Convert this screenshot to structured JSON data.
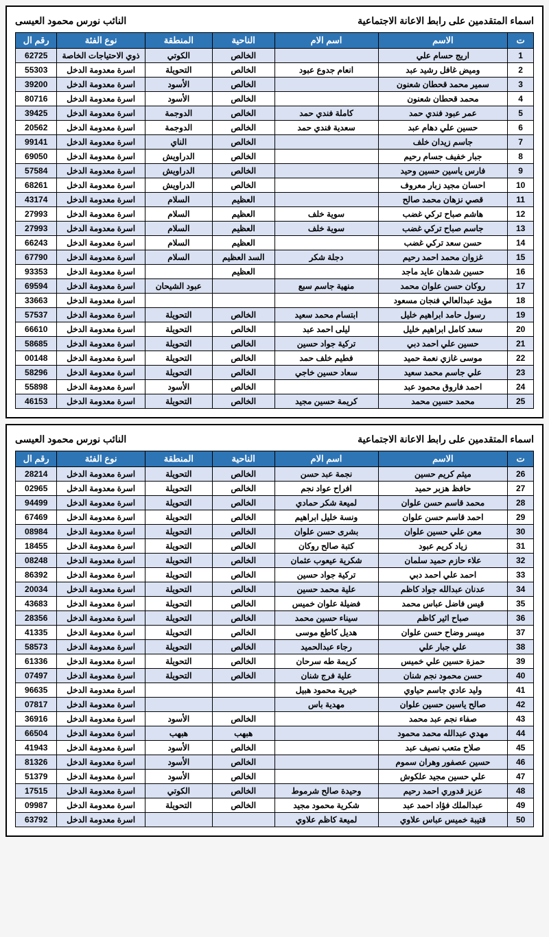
{
  "title_right": "اسماء المتقدمين على رابط الاعانة الاجتماعية",
  "title_left": "النائب نورس محمود العيسى",
  "headers": [
    "ت",
    "الاسم",
    "اسم الام",
    "الناحية",
    "المنطقة",
    "نوع الفئة",
    "رقم ال"
  ],
  "tables": [
    {
      "rows": [
        [
          "1",
          "اريج حسام علي",
          "",
          "الخالص",
          "الكوتي",
          "ذوي الاحتياجات الخاصة",
          "62725"
        ],
        [
          "2",
          "وميض غافل رشيد عبد",
          "انعام جدوع عبود",
          "الخالص",
          "التحويلة",
          "اسرة معدومة الدخل",
          "55303"
        ],
        [
          "3",
          "سمير محمد قحطان شعنون",
          "",
          "الخالص",
          "الأسود",
          "اسرة معدومة الدخل",
          "39200"
        ],
        [
          "4",
          "محمد قحطان شعنون",
          "",
          "الخالص",
          "الأسود",
          "اسرة معدومة الدخل",
          "80716"
        ],
        [
          "5",
          "عمر عبود فندي حمد",
          "كاملة فندي حمد",
          "الخالص",
          "الدوجمة",
          "اسرة معدومة الدخل",
          "39425"
        ],
        [
          "6",
          "حسين علي دهام عبد",
          "سعدية فندي حمد",
          "الخالص",
          "الدوجمة",
          "اسرة معدومة الدخل",
          "20562"
        ],
        [
          "7",
          "جاسم زيدان خلف",
          "",
          "الخالص",
          "الناي",
          "اسرة معدومة الدخل",
          "99141"
        ],
        [
          "8",
          "جبار خفيف جسام رحيم",
          "",
          "الخالص",
          "الدراويش",
          "اسرة معدومة الدخل",
          "69050"
        ],
        [
          "9",
          "فارس ياسين حسين وحيد",
          "",
          "الخالص",
          "الدراويش",
          "اسرة معدومة الدخل",
          "57584"
        ],
        [
          "10",
          "احسان مجيد زبار معروف",
          "",
          "الخالص",
          "الدراويش",
          "اسرة معدومة الدخل",
          "68261"
        ],
        [
          "11",
          "قصي نزهان محمد صالح",
          "",
          "العظيم",
          "السلام",
          "اسرة معدومة الدخل",
          "43174"
        ],
        [
          "12",
          "هاشم صباح تركي غضب",
          "سوية خلف",
          "العظيم",
          "السلام",
          "اسرة معدومة الدخل",
          "27993"
        ],
        [
          "13",
          "جاسم صباح تركي غضب",
          "سوية خلف",
          "العظيم",
          "السلام",
          "اسرة معدومة الدخل",
          "27993"
        ],
        [
          "14",
          "حسن سعد تركي غضب",
          "",
          "العظيم",
          "السلام",
          "اسرة معدومة الدخل",
          "66243"
        ],
        [
          "15",
          "غزوان محمد احمد رحيم",
          "دجلة شكر",
          "السد العظيم",
          "السلام",
          "اسرة معدومة الدخل",
          "67790"
        ],
        [
          "16",
          "حسين شدهان عايد ماجد",
          "",
          "العظيم",
          "",
          "اسرة معدومة الدخل",
          "93353"
        ],
        [
          "17",
          "روكان حسن علوان محمد",
          "منهية جاسم سبع",
          "",
          "عبود الشيحان",
          "اسرة معدومة الدخل",
          "69594"
        ],
        [
          "18",
          "مؤيد عبدالعالي فنجان مسعود",
          "",
          "",
          "",
          "اسرة معدومة الدخل",
          "33663"
        ],
        [
          "19",
          "رسول حامد ابراهيم خليل",
          "ابتسام محمد سعيد",
          "الخالص",
          "التحويلة",
          "اسرة معدومة الدخل",
          "57537"
        ],
        [
          "20",
          "سعد كامل ابراهيم خليل",
          "ليلى احمد عبد",
          "الخالص",
          "التحويلة",
          "اسرة معدومة الدخل",
          "66610"
        ],
        [
          "21",
          "حسين علي احمد دبي",
          "تركية جواد حسين",
          "الخالص",
          "التحويلة",
          "اسرة معدومة الدخل",
          "58685"
        ],
        [
          "22",
          "موسى غازي نعمة حميد",
          "فطيم خلف حمد",
          "الخالص",
          "التحويلة",
          "اسرة معدومة الدخل",
          "00148"
        ],
        [
          "23",
          "علي جاسم محمد سعيد",
          "سعاد حسين خاجي",
          "الخالص",
          "التحويلة",
          "اسرة معدومة الدخل",
          "58296"
        ],
        [
          "24",
          "احمد فاروق محمود عبد",
          "",
          "الخالص",
          "الأسود",
          "اسرة معدومة الدخل",
          "55898"
        ],
        [
          "25",
          "محمد حسين محمد",
          "كريمة حسين مجيد",
          "الخالص",
          "التحويلة",
          "اسرة معدومة الدخل",
          "46153"
        ]
      ]
    },
    {
      "rows": [
        [
          "26",
          "ميثم كريم حسين",
          "نجمة عبد حسن",
          "الخالص",
          "التحويلة",
          "اسرة معدومة الدخل",
          "28214"
        ],
        [
          "27",
          "حافظ هزبر حميد",
          "افراح عواد نجم",
          "الخالص",
          "التحويلة",
          "اسرة معدومة الدخل",
          "02965"
        ],
        [
          "28",
          "محمد قاسم حسن علوان",
          "لميعة شكر حمادي",
          "الخالص",
          "التحويلة",
          "اسرة معدومة الدخل",
          "94499"
        ],
        [
          "29",
          "احمد قاسم حسن علوان",
          "ونسة خليل ابراهيم",
          "الخالص",
          "التحويلة",
          "اسرة معدومة الدخل",
          "67469"
        ],
        [
          "30",
          "معن علي حسين علوان",
          "بشرى حسن علوان",
          "الخالص",
          "التحويلة",
          "اسرة معدومة الدخل",
          "08984"
        ],
        [
          "31",
          "زياد كريم عبود",
          "كتبة صالح روكان",
          "الخالص",
          "التحويلة",
          "اسرة معدومة الدخل",
          "18455"
        ],
        [
          "32",
          "علاء حازم حميد سلمان",
          "شكرية عيعوب عثمان",
          "الخالص",
          "التحويلة",
          "اسرة معدومة الدخل",
          "08248"
        ],
        [
          "33",
          "احمد علي احمد دبي",
          "تركية جواد حسين",
          "الخالص",
          "التحويلة",
          "اسرة معدومة الدخل",
          "86392"
        ],
        [
          "34",
          "عدنان عبدالله جواد كاظم",
          "علية محمد حسين",
          "الخالص",
          "التحويلة",
          "اسرة معدومة الدخل",
          "20034"
        ],
        [
          "35",
          "قيس فاضل عباس محمد",
          "فضيلة علوان خميس",
          "الخالص",
          "التحويلة",
          "اسرة معدومة الدخل",
          "43683"
        ],
        [
          "36",
          "صباح اثير كاظم",
          "سيناء حسين محمد",
          "الخالص",
          "التحويلة",
          "اسرة معدومة الدخل",
          "28356"
        ],
        [
          "37",
          "ميسر وضاح حسن علوان",
          "هديل كاطع موسى",
          "الخالص",
          "التحويلة",
          "اسرة معدومة الدخل",
          "41335"
        ],
        [
          "38",
          "علي جبار علي",
          "رجاء عبدالحميد",
          "الخالص",
          "التحويلة",
          "اسرة معدومة الدخل",
          "58573"
        ],
        [
          "39",
          "حمزة حسين علي خميس",
          "كريمة طه سرحان",
          "الخالص",
          "التحويلة",
          "اسرة معدومة الدخل",
          "61336"
        ],
        [
          "40",
          "حسن محمود نجم شنان",
          "علية فرج شنان",
          "الخالص",
          "التحويلة",
          "اسرة معدومة الدخل",
          "07497"
        ],
        [
          "41",
          "وليد عادي جاسم حياوي",
          "خيرية محمود هبيل",
          "",
          "",
          "اسرة معدومة الدخل",
          "96635"
        ],
        [
          "42",
          "صالح ياسين حسين علوان",
          "مهدية باس",
          "",
          "",
          "اسرة معدومة الدخل",
          "07817"
        ],
        [
          "43",
          "صفاء نجم عبد محمد",
          "",
          "الخالص",
          "الأسود",
          "اسرة معدومة الدخل",
          "36916"
        ],
        [
          "44",
          "مهدي عبدالله محمد محمود",
          "",
          "هبهب",
          "هبهب",
          "اسرة معدومة الدخل",
          "66504"
        ],
        [
          "45",
          "صلاح متعب نصيف عبد",
          "",
          "الخالص",
          "الأسود",
          "اسرة معدومة الدخل",
          "41943"
        ],
        [
          "46",
          "حسين عصفور وهران سموم",
          "",
          "الخالص",
          "الأسود",
          "اسرة معدومة الدخل",
          "81326"
        ],
        [
          "47",
          "علي حسين مجيد علكوش",
          "",
          "الخالص",
          "الأسود",
          "اسرة معدومة الدخل",
          "51379"
        ],
        [
          "48",
          "عزيز قدوري احمد رحيم",
          "وحيدة صالح شرموط",
          "الخالص",
          "الكوتي",
          "اسرة معدومة الدخل",
          "17515"
        ],
        [
          "49",
          "عبدالملك فؤاد احمد عبد",
          "شكرية محمود مجيد",
          "الخالص",
          "التحويلة",
          "اسرة معدومة الدخل",
          "09987"
        ],
        [
          "50",
          "قتيبة خميس عباس علاوي",
          "لميعة كاظم علاوي",
          "",
          "",
          "اسرة معدومة الدخل",
          "63792"
        ]
      ]
    }
  ]
}
